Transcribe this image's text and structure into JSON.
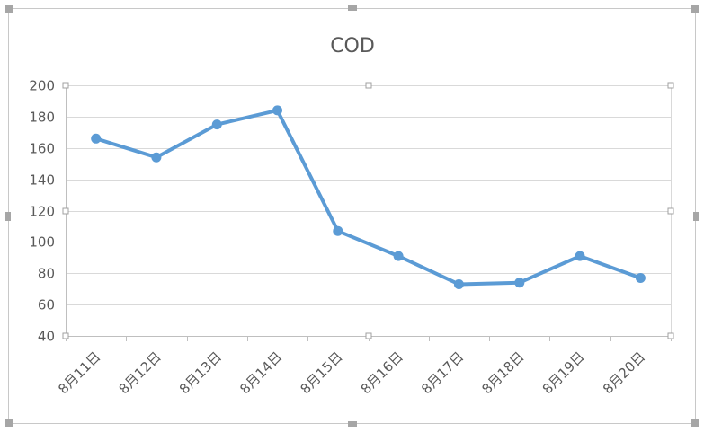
{
  "chart_data": {
    "type": "line",
    "title": "COD",
    "xlabel": "",
    "ylabel": "",
    "categories": [
      "8月11日",
      "8月12日",
      "8月13日",
      "8月14日",
      "8月15日",
      "8月16日",
      "8月17日",
      "8月18日",
      "8月19日",
      "8月20日"
    ],
    "series": [
      {
        "values": [
          166,
          154,
          175,
          184,
          107,
          91,
          73,
          74,
          91,
          77
        ]
      }
    ],
    "ylim": [
      40,
      200
    ],
    "yticks": [
      40,
      60,
      80,
      100,
      120,
      140,
      160,
      180,
      200
    ],
    "grid": true,
    "legend": "none",
    "colors": {
      "series": "#5b9bd5"
    }
  }
}
